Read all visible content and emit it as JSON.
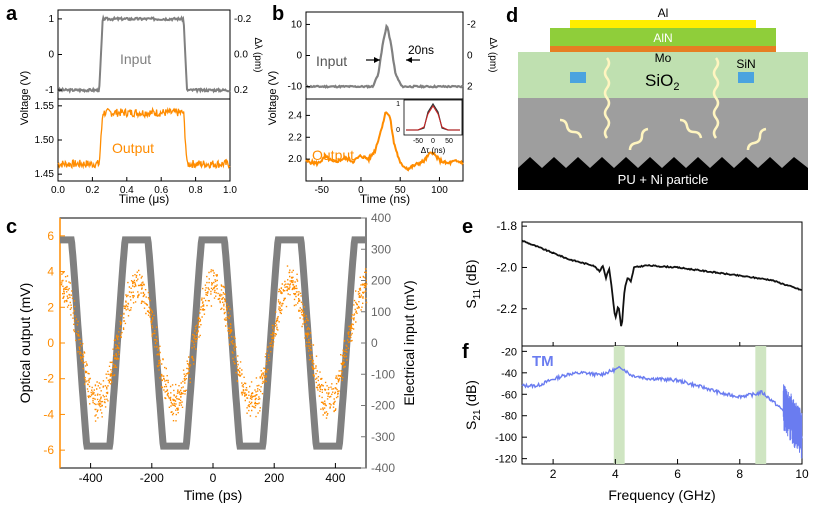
{
  "panel_labels": {
    "a": "a",
    "b": "b",
    "c": "c",
    "d": "d",
    "e": "e",
    "f": "f"
  },
  "colors": {
    "gray": "#808080",
    "orange": "#ff8c00",
    "black": "#111111",
    "blue": "#6a7cf0",
    "green_band": "#cfe5c2",
    "red": "#cc2222"
  },
  "device": {
    "layers": {
      "al": "Al",
      "aln": "AlN",
      "mo": "Mo",
      "sio2": "SiO",
      "sio2_sub": "2",
      "sin": "SiN",
      "bottom": "PU + Ni particle"
    },
    "colors": {
      "al": "#ffee00",
      "aln": "#8fce3a",
      "mo": "#e67e22",
      "sio2": "#bfe0b0",
      "sin": "#4aa3df",
      "gray": "#9e9e9e",
      "bottom": "#000000",
      "wave": "#fff5c0"
    }
  },
  "chart_data": [
    {
      "id": "a-top",
      "type": "line",
      "series_name": "Input",
      "label": "Input",
      "ylabel": "Voltage (V)",
      "y2label": "Δλ (pm)",
      "xlim": [
        0,
        1
      ],
      "ylim": [
        -1.25,
        1.25
      ],
      "yticks": [
        -1,
        0,
        1
      ],
      "y2ticks": [
        "-0.2",
        "0.0",
        "0.2"
      ],
      "points": [
        [
          0,
          -1
        ],
        [
          0.24,
          -1
        ],
        [
          0.26,
          1
        ],
        [
          0.73,
          1
        ],
        [
          0.75,
          -1
        ],
        [
          1,
          -1
        ]
      ]
    },
    {
      "id": "a-bottom",
      "type": "line",
      "series_name": "Output",
      "label": "Output",
      "xlabel": "Time (μs)",
      "xlim": [
        0,
        1
      ],
      "ylim": [
        1.44,
        1.56
      ],
      "xticks": [
        "0.0",
        "0.2",
        "0.4",
        "0.6",
        "0.8",
        "1.0"
      ],
      "yticks": [
        "1.45",
        "1.50",
        "1.55"
      ],
      "points": [
        [
          0,
          1.465
        ],
        [
          0.24,
          1.465
        ],
        [
          0.26,
          1.54
        ],
        [
          0.73,
          1.54
        ],
        [
          0.75,
          1.465
        ],
        [
          1,
          1.465
        ]
      ]
    },
    {
      "id": "b-top",
      "type": "line",
      "series_name": "Input",
      "label": "Input",
      "annotation": "20ns",
      "ylabel": "Voltage (V)",
      "y2label": "Δλ (pm)",
      "xlim": [
        -70,
        130
      ],
      "ylim": [
        -14,
        14
      ],
      "yticks": [
        -10,
        0,
        10
      ],
      "y2ticks": [
        "-2",
        "0",
        "2"
      ],
      "points": [
        [
          -70,
          -10
        ],
        [
          15,
          -10
        ],
        [
          22,
          -6
        ],
        [
          28,
          4
        ],
        [
          33,
          10
        ],
        [
          38,
          4
        ],
        [
          44,
          -6
        ],
        [
          52,
          -10
        ],
        [
          130,
          -10
        ]
      ]
    },
    {
      "id": "b-bottom",
      "type": "line",
      "series_name": "Output",
      "label": "Output",
      "xlabel": "Time (ns)",
      "xlim": [
        -70,
        130
      ],
      "ylim": [
        1.8,
        2.55
      ],
      "xticks": [
        -50,
        0,
        50,
        100
      ],
      "yticks": [
        "2.0",
        "2.2",
        "2.4"
      ],
      "points": [
        [
          -70,
          1.98
        ],
        [
          -55,
          1.96
        ],
        [
          -45,
          2.02
        ],
        [
          -35,
          1.97
        ],
        [
          -20,
          2.01
        ],
        [
          -10,
          1.98
        ],
        [
          0,
          2.03
        ],
        [
          10,
          2.0
        ],
        [
          18,
          2.08
        ],
        [
          25,
          2.25
        ],
        [
          32,
          2.44
        ],
        [
          37,
          2.38
        ],
        [
          42,
          2.15
        ],
        [
          50,
          1.96
        ],
        [
          60,
          1.91
        ],
        [
          70,
          1.95
        ],
        [
          80,
          1.98
        ],
        [
          90,
          2.07
        ],
        [
          100,
          1.99
        ],
        [
          110,
          1.96
        ],
        [
          120,
          1.98
        ],
        [
          130,
          1.97
        ]
      ],
      "inset": {
        "xlabel": "Δτ (ns)",
        "xticks": [
          -50,
          0,
          50
        ],
        "yticks": [
          0,
          1
        ]
      }
    },
    {
      "id": "c",
      "type": "line",
      "xlabel": "Time (ps)",
      "ylabel": "Optical output (mV)",
      "y2label": "Electrical input (mV)",
      "xlim": [
        -500,
        500
      ],
      "ylim": [
        -7,
        7
      ],
      "y2lim": [
        -400,
        400
      ],
      "xticks": [
        -400,
        -200,
        0,
        200,
        400
      ],
      "yticks": [
        -6,
        -4,
        -2,
        0,
        2,
        4,
        6
      ],
      "y2ticks": [
        -400,
        -300,
        -200,
        -100,
        0,
        100,
        200,
        300,
        400
      ],
      "period": 250,
      "series": [
        {
          "name": "Electrical input",
          "amplitude": 330,
          "color": "#808080"
        },
        {
          "name": "Optical output",
          "amplitude": 3.3,
          "noise": 1.2,
          "color": "#ff8c00"
        }
      ]
    },
    {
      "id": "e",
      "type": "line",
      "ylabel": "S11 (dB)",
      "ylabel_main": "S",
      "ylabel_sub": "11",
      "ylabel_unit": "(dB)",
      "xlim": [
        1,
        10
      ],
      "ylim": [
        -2.38,
        -1.78
      ],
      "yticks": [
        "-1.8",
        "-2.0",
        "-2.2"
      ],
      "points": [
        [
          1,
          -1.87
        ],
        [
          1.5,
          -1.9
        ],
        [
          2,
          -1.93
        ],
        [
          2.5,
          -1.96
        ],
        [
          3,
          -1.98
        ],
        [
          3.3,
          -1.99
        ],
        [
          3.5,
          -2.02
        ],
        [
          3.6,
          -1.99
        ],
        [
          3.7,
          -2.05
        ],
        [
          3.8,
          -2.0
        ],
        [
          3.9,
          -2.12
        ],
        [
          4.0,
          -2.25
        ],
        [
          4.1,
          -2.18
        ],
        [
          4.2,
          -2.3
        ],
        [
          4.3,
          -2.1
        ],
        [
          4.4,
          -2.05
        ],
        [
          4.5,
          -2.07
        ],
        [
          4.6,
          -2.0
        ],
        [
          5,
          -1.99
        ],
        [
          6,
          -2.0
        ],
        [
          7,
          -2.02
        ],
        [
          8,
          -2.04
        ],
        [
          9,
          -2.06
        ],
        [
          10,
          -2.11
        ]
      ]
    },
    {
      "id": "f",
      "type": "line",
      "label": "TM",
      "ylabel": "S21 (dB)",
      "ylabel_main": "S",
      "ylabel_sub": "21",
      "ylabel_unit": "(dB)",
      "xlabel": "Frequency (GHz)",
      "xlim": [
        1,
        10
      ],
      "ylim": [
        -125,
        -15
      ],
      "xticks": [
        2,
        4,
        6,
        8,
        10
      ],
      "yticks": [
        -20,
        -40,
        -60,
        -80,
        -100,
        -120
      ],
      "bands": [
        [
          3.95,
          4.3
        ],
        [
          8.5,
          8.85
        ]
      ],
      "points": [
        [
          1,
          -52
        ],
        [
          1.5,
          -52
        ],
        [
          2,
          -46
        ],
        [
          2.5,
          -41
        ],
        [
          3,
          -40
        ],
        [
          3.5,
          -42
        ],
        [
          4.0,
          -37
        ],
        [
          4.2,
          -35
        ],
        [
          4.5,
          -42
        ],
        [
          5,
          -45
        ],
        [
          6,
          -47
        ],
        [
          7,
          -55
        ],
        [
          7.5,
          -60
        ],
        [
          8,
          -62
        ],
        [
          8.5,
          -60
        ],
        [
          8.7,
          -58
        ],
        [
          9,
          -65
        ],
        [
          9.5,
          -78
        ],
        [
          10,
          -100
        ]
      ]
    }
  ]
}
